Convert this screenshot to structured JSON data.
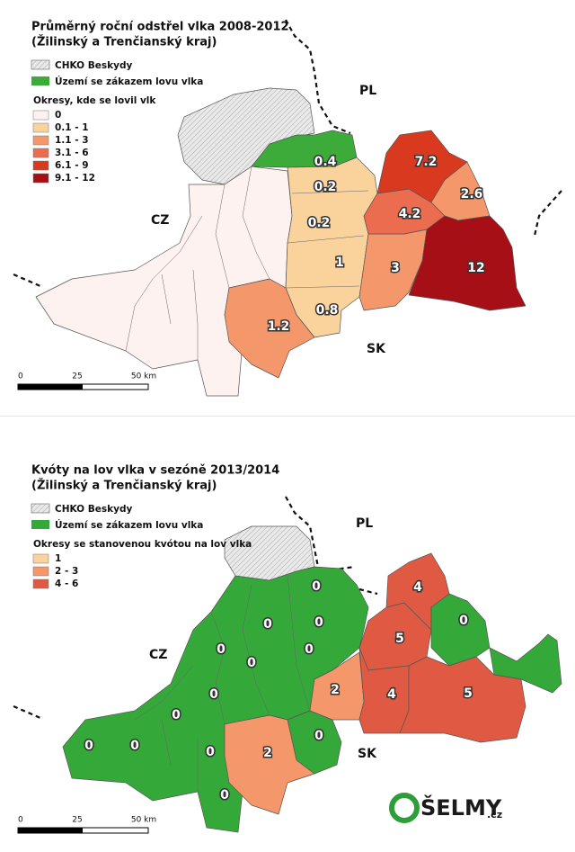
{
  "maps": [
    {
      "title": [
        "Průměrný roční odstřel vlka 2008-2012",
        "(Žilinský a Trenčianský kraj)"
      ],
      "legend": {
        "protected_area": "CHKO Beskydy",
        "no_hunting_zone": "Území se zákazem lovu vlka",
        "classes_title": "Okresy, kde se lovil vlk",
        "classes": [
          "0",
          "0.1 - 1",
          "1.1 - 3",
          "3.1 - 6",
          "6.1 - 9",
          "9.1 - 12"
        ]
      },
      "countries": [
        "PL",
        "CZ",
        "SK"
      ],
      "scale": [
        0,
        25,
        "50 km"
      ],
      "district_labels": [
        0.4,
        0.2,
        0.2,
        1,
        3,
        4.2,
        7.2,
        2.6,
        12,
        1.2,
        0.8
      ]
    },
    {
      "title": [
        "Kvóty na  lov vlka v sezóně 2013/2014",
        "(Žilinský a Trenčianský kraj)"
      ],
      "legend": {
        "protected_area": "CHKO Beskydy",
        "no_hunting_zone": "Území se zákazem lovu vlka",
        "classes_title": "Okresy se stanovenou kvótou na lov vlka",
        "classes": [
          "1",
          "2 - 3",
          "4 - 6"
        ]
      },
      "countries": [
        "PL",
        "CZ",
        "SK"
      ],
      "scale": [
        0,
        25,
        "50 km"
      ],
      "district_labels": [
        0,
        0,
        0,
        0,
        0,
        0,
        0,
        0,
        0,
        0,
        0,
        0,
        0,
        0,
        2,
        2,
        4,
        4,
        5,
        5
      ]
    }
  ],
  "logo": {
    "name": "ŠELMY",
    "domain": ".cz"
  }
}
